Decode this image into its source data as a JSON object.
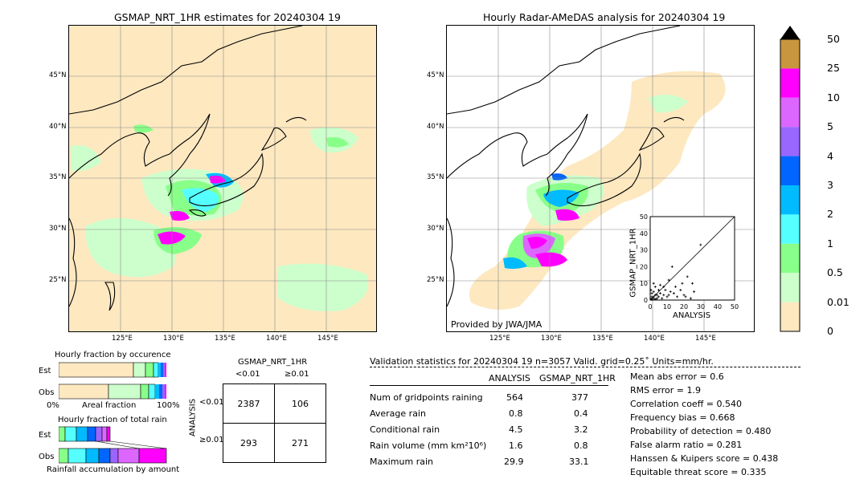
{
  "maps": {
    "left_title": "GSMAP_NRT_1HR estimates for 20240304 19",
    "right_title": "Hourly Radar-AMeDAS analysis for 20240304 19",
    "lat_labels": [
      "45°N",
      "40°N",
      "35°N",
      "30°N",
      "25°N"
    ],
    "lon_labels": [
      "125°E",
      "130°E",
      "135°E",
      "140°E",
      "145°E"
    ],
    "credit": "Provided by JWA/JMA"
  },
  "colorbar": {
    "ticks": [
      "50",
      "25",
      "10",
      "5",
      "4",
      "3",
      "2",
      "1",
      "0.5",
      "0.01",
      "0"
    ],
    "colors": [
      "#c8963c",
      "#ff00ff",
      "#dd66ff",
      "#9966ff",
      "#0066ff",
      "#00bbff",
      "#55ffff",
      "#88ff88",
      "#ccffcc",
      "#fde8c0"
    ]
  },
  "scatter": {
    "xlabel": "ANALYSIS",
    "ylabel": "GSMAP_NRT_1HR",
    "ticks": [
      "0",
      "10",
      "20",
      "30",
      "40",
      "50"
    ],
    "points": [
      [
        0.5,
        0.5
      ],
      [
        1,
        0.3
      ],
      [
        2,
        1
      ],
      [
        3,
        0.5
      ],
      [
        1,
        2
      ],
      [
        4,
        3
      ],
      [
        5,
        2
      ],
      [
        2,
        5
      ],
      [
        6,
        4
      ],
      [
        8,
        3
      ],
      [
        10,
        2
      ],
      [
        12,
        5
      ],
      [
        3,
        8
      ],
      [
        1,
        4
      ],
      [
        7,
        1
      ],
      [
        9,
        6
      ],
      [
        15,
        8
      ],
      [
        20,
        3
      ],
      [
        14,
        4
      ],
      [
        18,
        6
      ],
      [
        22,
        14
      ],
      [
        25,
        10
      ],
      [
        2,
        10
      ],
      [
        5,
        6
      ],
      [
        11,
        12
      ],
      [
        13,
        20
      ],
      [
        16,
        2
      ],
      [
        6,
        9
      ],
      [
        4,
        1
      ],
      [
        3,
        3
      ],
      [
        1,
        1
      ],
      [
        8,
        8
      ],
      [
        29.9,
        33.1
      ],
      [
        19,
        10
      ],
      [
        24,
        1
      ],
      [
        11,
        3
      ],
      [
        0.5,
        6
      ],
      [
        2,
        2
      ],
      [
        26,
        5
      ],
      [
        21,
        2
      ]
    ]
  },
  "occurrence": {
    "title": "Hourly fraction by occurence",
    "row_est": "Est",
    "row_obs": "Obs",
    "axis_left": "0%",
    "axis_mid": "Areal fraction",
    "axis_right": "100%"
  },
  "total_rain": {
    "title": "Hourly fraction of total rain",
    "row_est": "Est",
    "row_obs": "Obs",
    "footer": "Rainfall accumulation by amount"
  },
  "contingency": {
    "title": "GSMAP_NRT_1HR",
    "col_lt": "<0.01",
    "col_ge": "≥0.01",
    "row_label": "ANALYSIS",
    "row_lt": "<0.01",
    "row_ge": "≥0.01",
    "a": "2387",
    "b": "106",
    "c": "293",
    "d": "271"
  },
  "validation": {
    "header": "Validation statistics for 20240304 19  n=3057 Valid. grid=0.25˚ Units=mm/hr.",
    "col_analysis": "ANALYSIS",
    "col_gsmap": "GSMAP_NRT_1HR",
    "rows": [
      {
        "label": "Num of gridpoints raining",
        "analysis": "564",
        "gsmap": "377"
      },
      {
        "label": "Average rain",
        "analysis": "0.8",
        "gsmap": "0.4"
      },
      {
        "label": "Conditional rain",
        "analysis": "4.5",
        "gsmap": "3.2"
      },
      {
        "label": "Rain volume (mm km²10⁶)",
        "analysis": "1.6",
        "gsmap": "0.8"
      },
      {
        "label": "Maximum rain",
        "analysis": "29.9",
        "gsmap": "33.1"
      }
    ],
    "scores": [
      "Mean abs error =    0.6",
      "RMS error =    1.9",
      "Correlation coeff =  0.540",
      "Frequency bias =  0.668",
      "Probability of detection =  0.480",
      "False alarm ratio =  0.281",
      "Hanssen & Kuipers score =  0.438",
      "Equitable threat score =  0.335"
    ]
  }
}
